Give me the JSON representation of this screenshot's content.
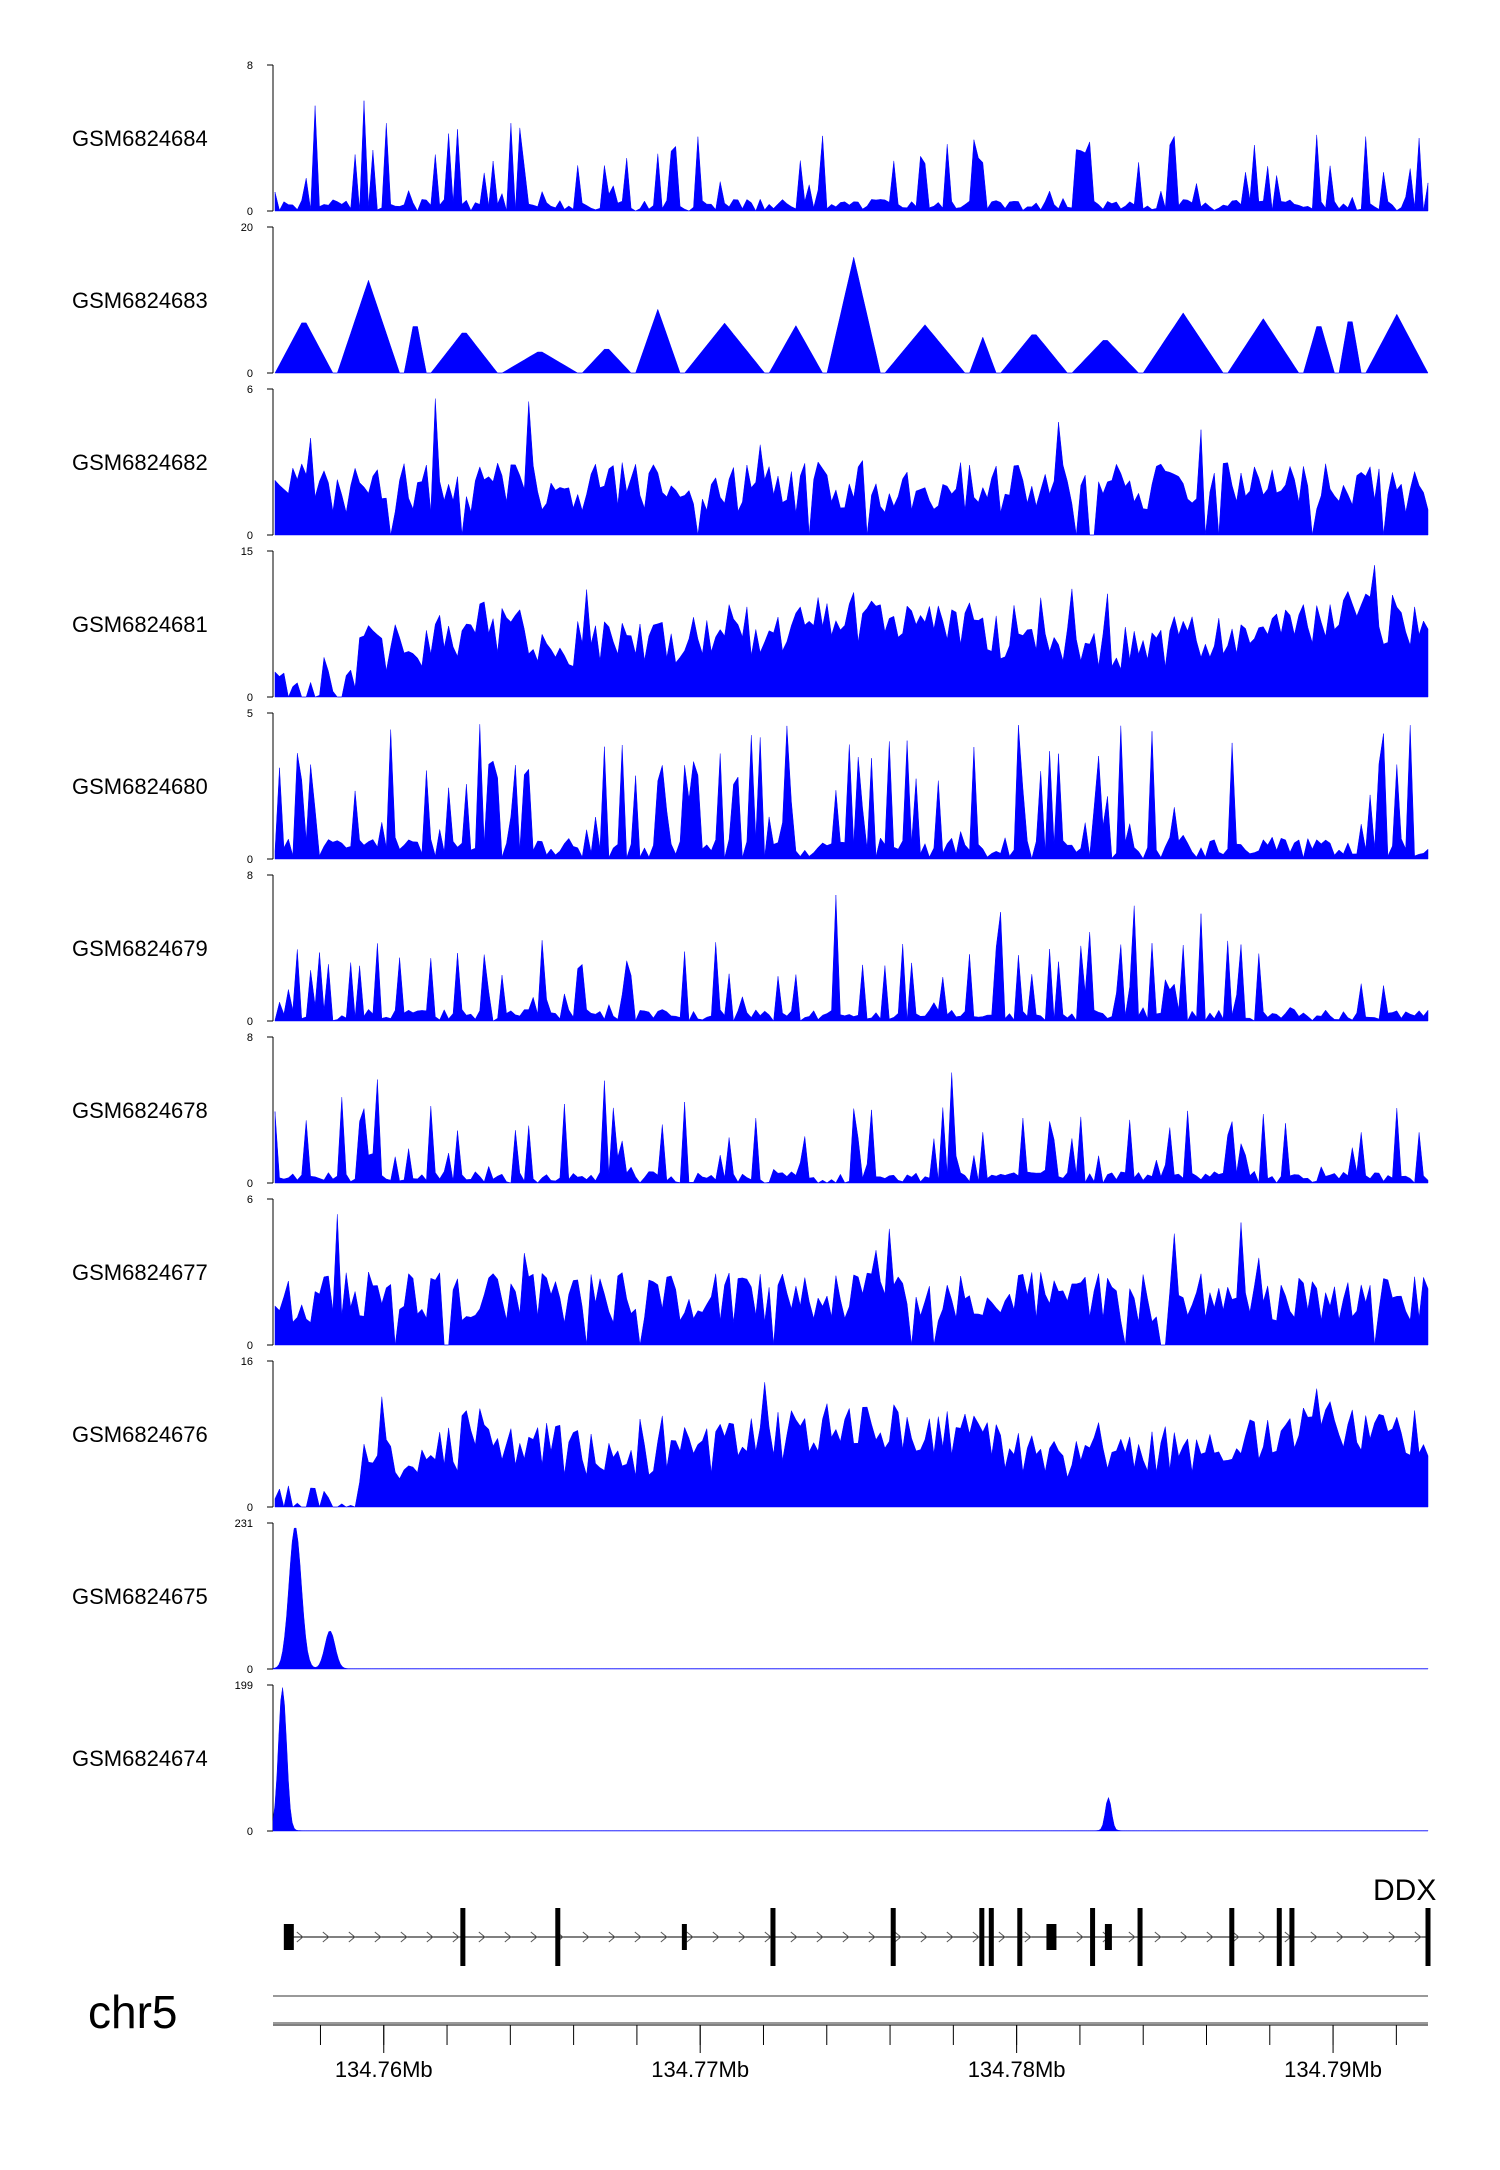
{
  "chart_data": {
    "type": "area",
    "chromosome": "chr5",
    "x_range_mb": [
      134.7565,
      134.793
    ],
    "x_ticks": [
      134.76,
      134.77,
      134.78,
      134.79
    ],
    "x_tick_labels": [
      "134.76Mb",
      "134.77Mb",
      "134.78Mb",
      "134.79Mb"
    ],
    "color": "#0000ff",
    "tracks": [
      {
        "name": "GSM6824684",
        "ymax": 8,
        "ymin_label": "0",
        "ymax_label": "8",
        "profile": "sparse"
      },
      {
        "name": "GSM6824683",
        "ymax": 20,
        "ymin_label": "0",
        "ymax_label": "20",
        "profile": "triangles"
      },
      {
        "name": "GSM6824682",
        "ymax": 6,
        "ymin_label": "0",
        "ymax_label": "6",
        "profile": "medium"
      },
      {
        "name": "GSM6824681",
        "ymax": 15,
        "ymin_label": "0",
        "ymax_label": "15",
        "profile": "dense"
      },
      {
        "name": "GSM6824680",
        "ymax": 5,
        "ymin_label": "0",
        "ymax_label": "5",
        "profile": "spiky"
      },
      {
        "name": "GSM6824679",
        "ymax": 8,
        "ymin_label": "0",
        "ymax_label": "8",
        "profile": "sparse"
      },
      {
        "name": "GSM6824678",
        "ymax": 8,
        "ymin_label": "0",
        "ymax_label": "8",
        "profile": "sparse"
      },
      {
        "name": "GSM6824677",
        "ymax": 6,
        "ymin_label": "0",
        "ymax_label": "6",
        "profile": "medium"
      },
      {
        "name": "GSM6824676",
        "ymax": 16,
        "ymin_label": "0",
        "ymax_label": "16",
        "profile": "dense"
      },
      {
        "name": "GSM6824675",
        "ymax": 231,
        "ymin_label": "0",
        "ymax_label": "231",
        "peaks": [
          {
            "center_mb": 134.7572,
            "height": 225,
            "width_mb": 0.0006
          },
          {
            "center_mb": 134.7583,
            "height": 60,
            "width_mb": 0.0005
          }
        ]
      },
      {
        "name": "GSM6824674",
        "ymax": 199,
        "ymin_label": "0",
        "ymax_label": "199",
        "peaks": [
          {
            "center_mb": 134.7568,
            "height": 195,
            "width_mb": 0.0004
          },
          {
            "center_mb": 134.7829,
            "height": 45,
            "width_mb": 0.0003
          }
        ]
      }
    ],
    "gene": {
      "label": "DDX",
      "strand": "+",
      "start_mb": 134.757,
      "end_mb": 134.793,
      "exons_mb": [
        134.757,
        134.7625,
        134.7655,
        134.7695,
        134.7723,
        134.7761,
        134.7789,
        134.7792,
        134.7801,
        134.7811,
        134.7824,
        134.7829,
        134.7839,
        134.7868,
        134.7883,
        134.7887,
        134.793
      ]
    }
  }
}
